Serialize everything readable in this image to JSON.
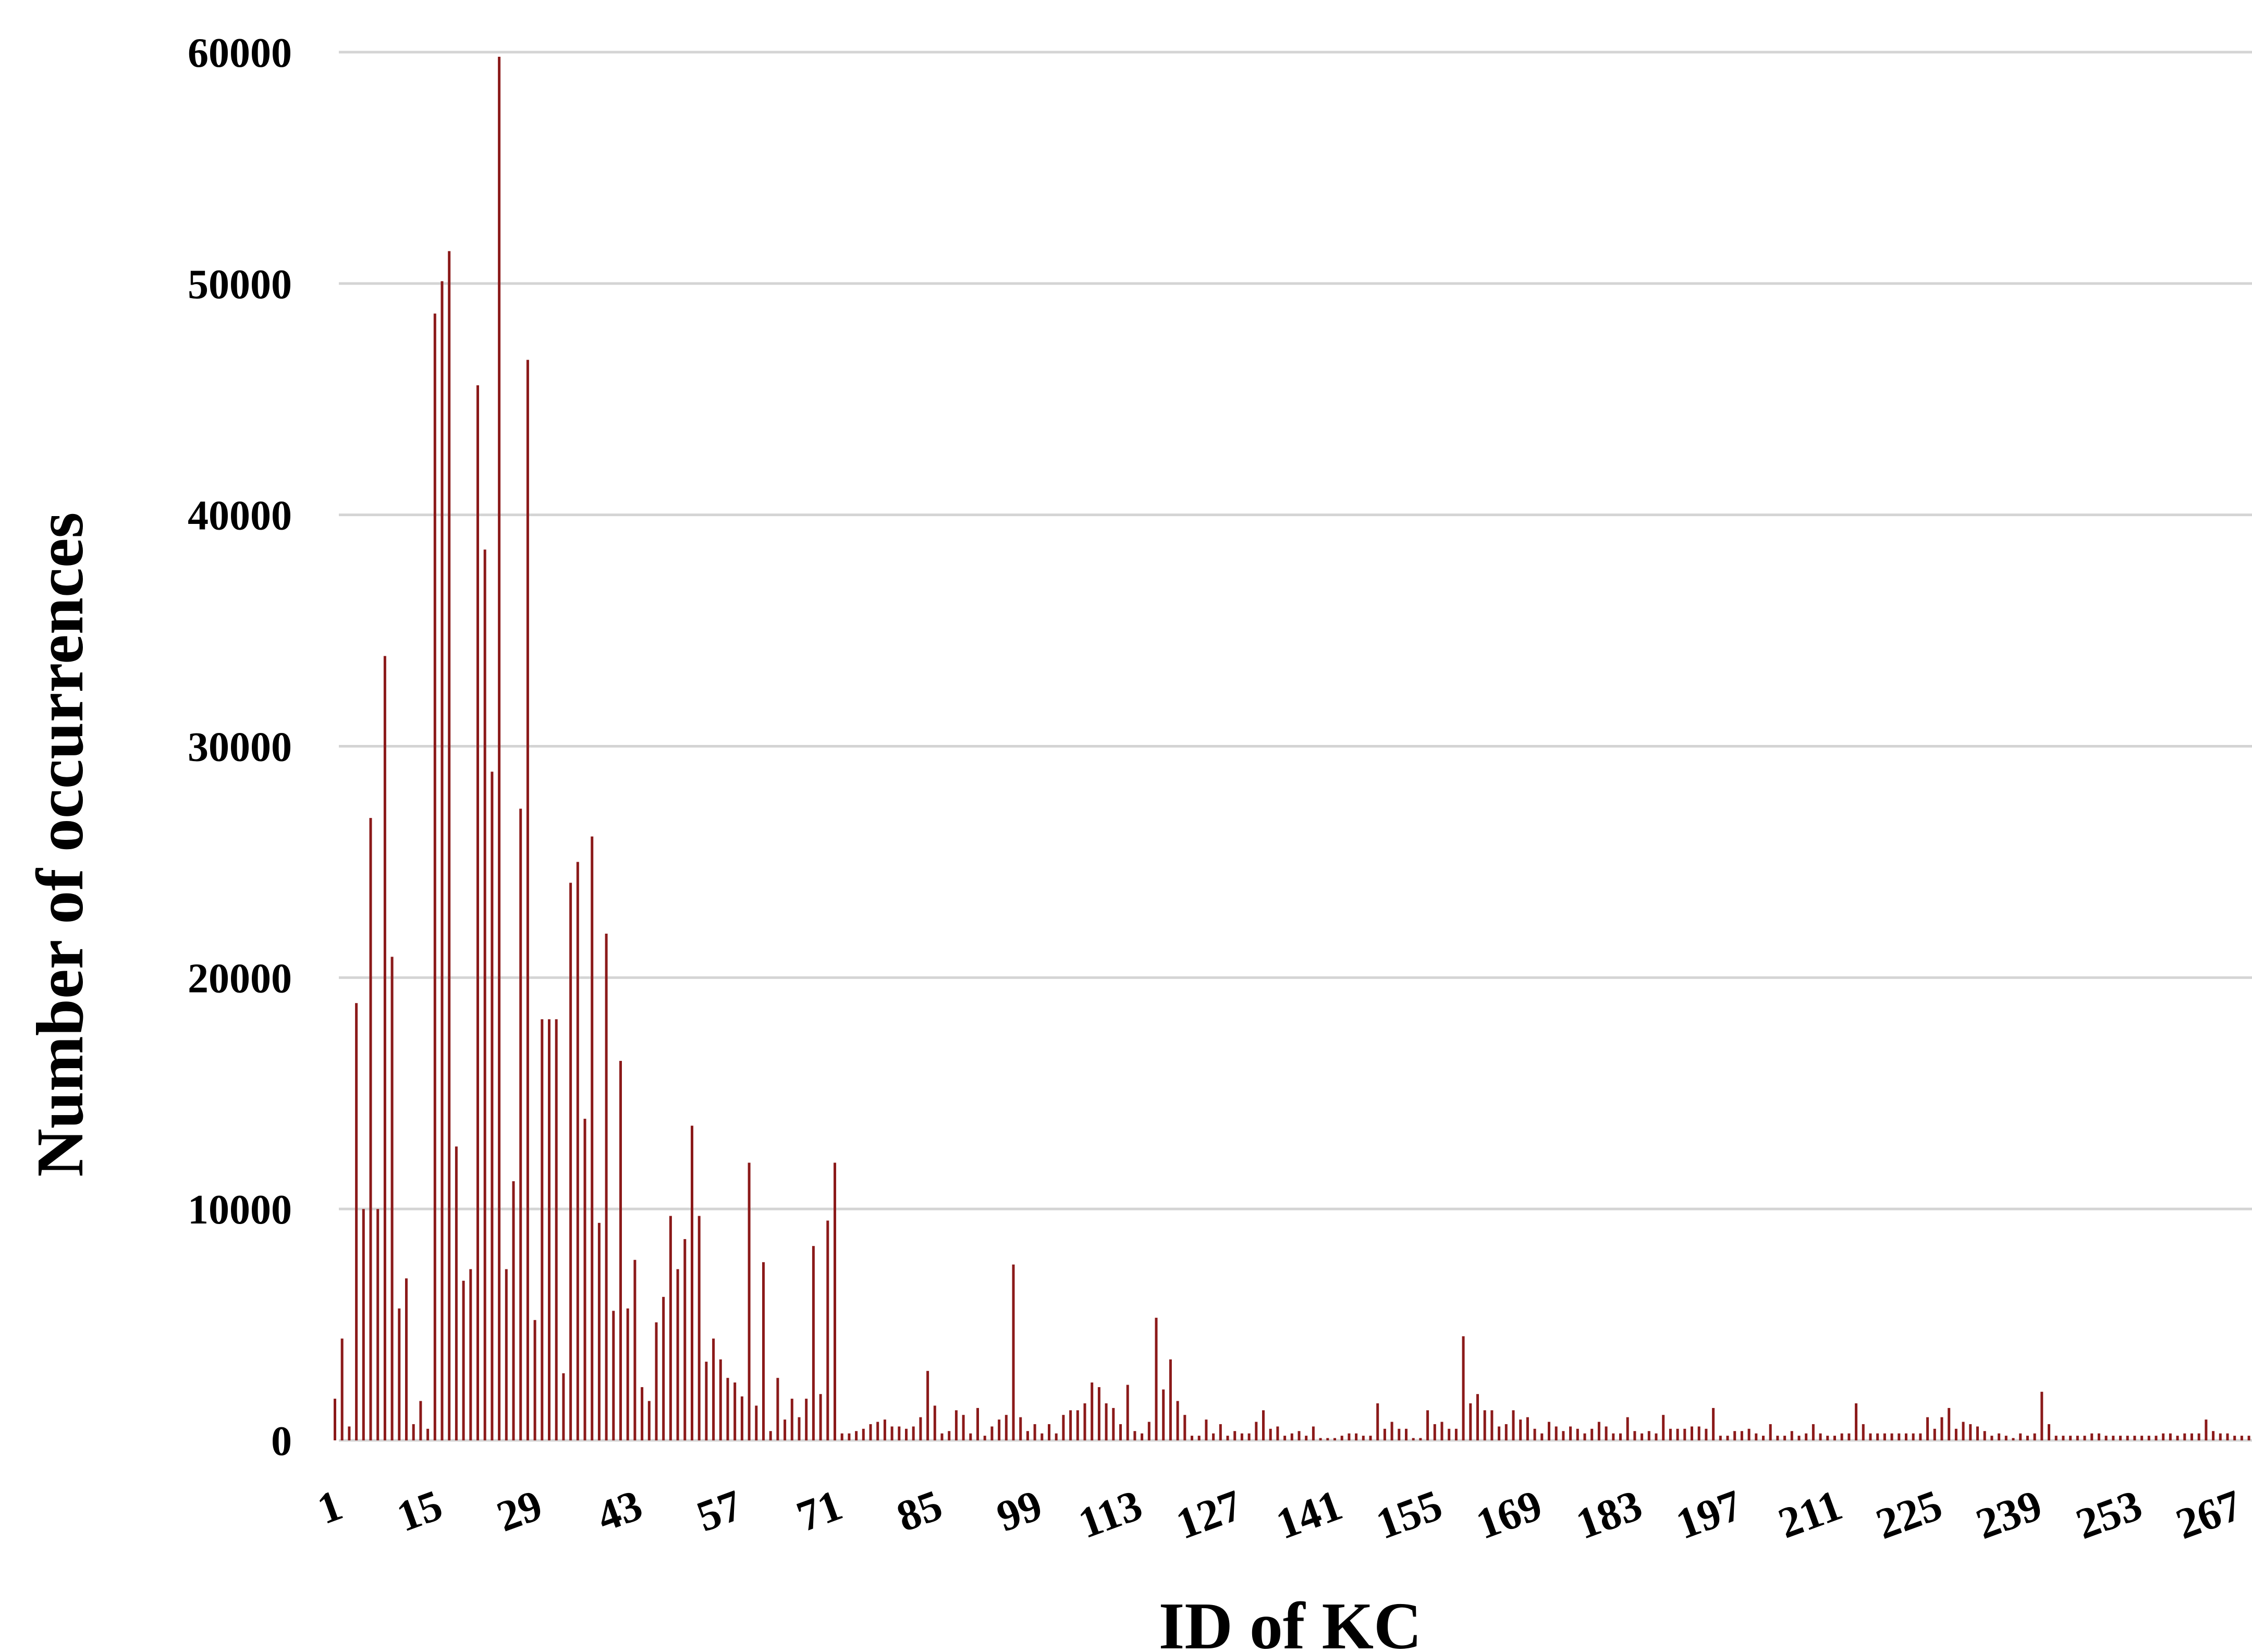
{
  "chart_data": {
    "type": "bar",
    "xlabel": "ID of KC",
    "ylabel": "Number of occurrences",
    "ylim": [
      0,
      60000
    ],
    "yticks": [
      "0",
      "10000",
      "20000",
      "30000",
      "40000",
      "50000",
      "60000"
    ],
    "xtick_labels": [
      "1",
      "15",
      "29",
      "43",
      "57",
      "71",
      "85",
      "99",
      "113",
      "127",
      "141",
      "155",
      "169",
      "183",
      "197",
      "211",
      "225",
      "239",
      "253",
      "267"
    ],
    "x_start": 1,
    "x_end": 273,
    "grid": true,
    "legend": "none",
    "bar_color": "#8b1a1a",
    "values": [
      1800,
      4400,
      600,
      18900,
      10000,
      26900,
      10000,
      33900,
      20900,
      5700,
      7000,
      700,
      1700,
      500,
      48700,
      50100,
      51400,
      12700,
      6900,
      7400,
      45600,
      38500,
      28900,
      59800,
      7400,
      11200,
      27300,
      46700,
      5200,
      18200,
      18200,
      18200,
      2900,
      24100,
      25000,
      13900,
      26100,
      9400,
      21900,
      5600,
      16400,
      5700,
      7800,
      2300,
      1700,
      5100,
      6200,
      9700,
      7400,
      8700,
      13600,
      9700,
      3400,
      4400,
      3500,
      2700,
      2500,
      1900,
      12000,
      1500,
      7700,
      400,
      2700,
      900,
      1800,
      1000,
      1800,
      8400,
      2000,
      9500,
      12000,
      300,
      300,
      400,
      500,
      700,
      800,
      900,
      600,
      600,
      500,
      600,
      1000,
      3000,
      1500,
      300,
      400,
      1300,
      1100,
      300,
      1400,
      200,
      600,
      900,
      1100,
      7600,
      1000,
      400,
      700,
      300,
      700,
      300,
      1100,
      1300,
      1300,
      1600,
      2500,
      2300,
      1600,
      1400,
      700,
      2400,
      400,
      300,
      800,
      5300,
      2200,
      3500,
      1700,
      1100,
      200,
      200,
      900,
      300,
      700,
      200,
      400,
      300,
      300,
      800,
      1300,
      500,
      600,
      200,
      300,
      400,
      200,
      600,
      100,
      100,
      100,
      200,
      300,
      300,
      200,
      200,
      1600,
      500,
      800,
      500,
      500,
      100,
      100,
      1300,
      700,
      800,
      500,
      500,
      4500,
      1600,
      2000,
      1300,
      1300,
      600,
      700,
      1300,
      900,
      1000,
      500,
      300,
      800,
      600,
      400,
      600,
      500,
      300,
      500,
      800,
      600,
      300,
      300,
      1000,
      400,
      300,
      400,
      300,
      1100,
      500,
      500,
      500,
      600,
      600,
      500,
      1400,
      200,
      200,
      400,
      400,
      500,
      300,
      200,
      700,
      200,
      200,
      400,
      200,
      300,
      700,
      300,
      200,
      200,
      300,
      300,
      1600,
      700,
      300,
      300,
      300,
      300,
      300,
      300,
      300,
      300,
      1000,
      500,
      1000,
      1400,
      500,
      800,
      700,
      600,
      400,
      200,
      300,
      200,
      100,
      300,
      200,
      300,
      2100,
      700,
      200,
      200,
      200,
      200,
      200,
      300,
      300,
      200,
      200,
      200,
      200,
      200,
      200,
      200,
      200,
      300,
      300,
      200,
      300,
      300,
      300,
      900,
      400,
      300,
      300,
      200,
      200,
      200,
      300,
      300,
      400,
      200
    ]
  }
}
